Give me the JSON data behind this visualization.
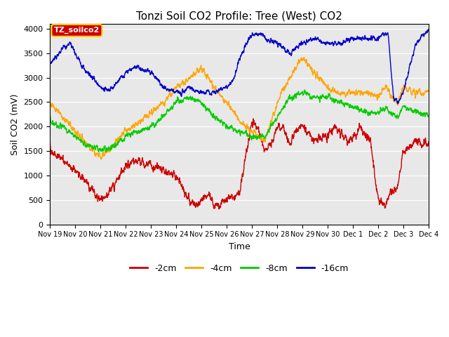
{
  "title": "Tonzi Soil CO2 Profile: Tree (West) CO2",
  "ylabel": "Soil CO2 (mV)",
  "xlabel": "Time",
  "ylim": [
    0,
    4100
  ],
  "x_tick_labels": [
    "Nov 19",
    "Nov 20",
    "Nov 21",
    "Nov 22",
    "Nov 23",
    "Nov 24",
    "Nov 25",
    "Nov 26",
    "Nov 27",
    "Nov 28",
    "Nov 29",
    "Nov 30",
    "Dec 1",
    "Dec 2",
    "Dec 3",
    "Dec 4"
  ],
  "legend_labels": [
    "-2cm",
    "-4cm",
    "-8cm",
    "-16cm"
  ],
  "legend_colors": [
    "#cc0000",
    "#ffa500",
    "#00cc00",
    "#0000cc"
  ],
  "watermark_text": "TZ_soilco2",
  "watermark_bg": "#cc0000",
  "watermark_fg": "#ffffff",
  "watermark_border": "#ffcc00",
  "background_color": "#e8e8e8",
  "plot_bg": "#e8e8e8",
  "title_fontsize": 11,
  "axis_label_fontsize": 9,
  "tick_fontsize": 8,
  "grid_color": "#ffffff",
  "line_width": 1.0
}
